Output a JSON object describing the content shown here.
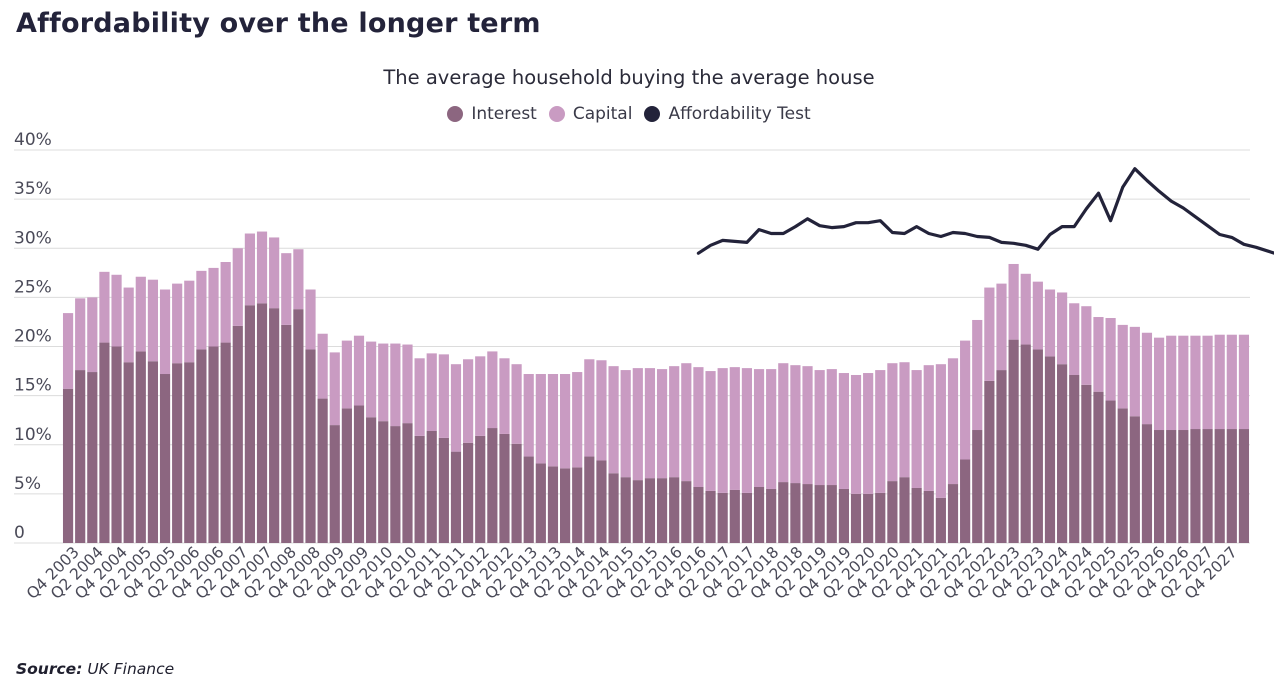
{
  "title": "Affordability over the longer term",
  "chart_data": {
    "type": "bar",
    "subtitle": "The average household buying the average house",
    "xlabel": "",
    "ylabel": "",
    "ylim": [
      0,
      40
    ],
    "y_ticks": [
      "0",
      "5%",
      "10%",
      "15%",
      "20%",
      "25%",
      "30%",
      "35%",
      "40%"
    ],
    "grid": true,
    "stacked": true,
    "legend_position": "top-center",
    "x_tick_labels": [
      "Q4 2003",
      "Q2 2004",
      "Q4 2004",
      "Q2 2005",
      "Q4 2005",
      "Q2 2006",
      "Q4 2006",
      "Q2 2007",
      "Q4 2007",
      "Q2 2008",
      "Q4 2008",
      "Q2 2009",
      "Q4 2009",
      "Q2 2010",
      "Q4 2010",
      "Q2 2011",
      "Q4 2011",
      "Q2 2012",
      "Q4 2012",
      "Q2 2013",
      "Q4 2013",
      "Q2 2014",
      "Q4 2014",
      "Q2 2015",
      "Q4 2015",
      "Q2 2016",
      "Q4 2016",
      "Q2 2017",
      "Q4 2017",
      "Q2 2018",
      "Q4 2018",
      "Q2 2019",
      "Q4 2019",
      "Q2 2020",
      "Q4 2020",
      "Q2 2021",
      "Q4 2021",
      "Q2 2022",
      "Q4 2022",
      "Q2 2023",
      "Q4 2023",
      "Q2 2024",
      "Q4 2024",
      "Q2 2025",
      "Q4 2025",
      "Q2 2026",
      "Q4 2026",
      "Q2 2027",
      "Q4 2027"
    ],
    "series": [
      {
        "name": "Interest",
        "color": "#8c6680",
        "values": [
          15.7,
          17.6,
          17.4,
          20.4,
          20.0,
          18.4,
          19.5,
          18.5,
          17.2,
          18.3,
          18.4,
          19.7,
          20.0,
          20.4,
          22.1,
          24.2,
          24.4,
          23.9,
          22.2,
          23.8,
          19.7,
          14.7,
          12.0,
          13.7,
          14.0,
          12.8,
          12.4,
          11.9,
          12.2,
          10.9,
          11.4,
          10.7,
          9.3,
          10.2,
          10.9,
          11.7,
          11.1,
          10.1,
          8.8,
          8.1,
          7.8,
          7.6,
          7.7,
          8.8,
          8.4,
          7.1,
          6.7,
          6.4,
          6.6,
          6.6,
          6.7,
          6.3,
          5.7,
          5.3,
          5.1,
          5.4,
          5.1,
          5.7,
          5.5,
          6.2,
          6.1,
          6.0,
          5.9,
          5.9,
          5.5,
          5.0,
          5.0,
          5.1,
          6.3,
          6.7,
          5.6,
          5.3,
          4.6,
          6.0,
          8.5,
          11.5,
          16.5,
          17.6,
          20.7,
          20.2,
          19.7,
          19.0,
          18.2,
          17.1,
          16.1,
          15.4,
          14.5,
          13.7,
          12.9,
          12.1,
          11.5,
          11.5,
          11.5,
          11.6,
          11.6,
          11.6,
          11.6,
          11.6
        ]
      },
      {
        "name": "Capital",
        "color": "#c99bc2",
        "values": [
          7.7,
          7.3,
          7.6,
          7.2,
          7.3,
          7.6,
          7.6,
          8.3,
          8.6,
          8.1,
          8.3,
          8.0,
          8.0,
          8.2,
          7.9,
          7.3,
          7.3,
          7.2,
          7.3,
          6.1,
          6.1,
          6.6,
          7.4,
          6.9,
          7.1,
          7.7,
          7.9,
          8.4,
          8.0,
          7.9,
          7.9,
          8.5,
          8.9,
          8.5,
          8.1,
          7.8,
          7.7,
          8.1,
          8.4,
          9.1,
          9.4,
          9.6,
          9.7,
          9.9,
          10.2,
          10.9,
          10.9,
          11.4,
          11.2,
          11.1,
          11.3,
          12.0,
          12.2,
          12.2,
          12.7,
          12.5,
          12.7,
          12.0,
          12.2,
          12.1,
          12.0,
          12.0,
          11.7,
          11.8,
          11.8,
          12.1,
          12.3,
          12.5,
          12.0,
          11.7,
          12.0,
          12.8,
          13.6,
          12.8,
          12.1,
          11.2,
          9.5,
          8.8,
          7.7,
          7.2,
          6.9,
          6.8,
          7.3,
          7.3,
          8.0,
          7.6,
          8.4,
          8.5,
          9.1,
          9.3,
          9.4,
          9.6,
          9.6,
          9.5,
          9.5,
          9.6,
          9.6,
          9.6
        ]
      },
      {
        "name": "Affordability Test",
        "color": "#23233a",
        "type": "line",
        "start_index": 52,
        "values": [
          29.5,
          30.3,
          30.8,
          30.7,
          30.6,
          31.9,
          31.5,
          31.5,
          32.2,
          33.0,
          32.3,
          32.1,
          32.2,
          32.6,
          32.6,
          32.8,
          31.6,
          31.5,
          32.2,
          31.5,
          31.2,
          31.6,
          31.5,
          31.2,
          31.1,
          30.6,
          30.5,
          30.3,
          29.9,
          31.4,
          32.2,
          32.2,
          34.0,
          35.6,
          32.8,
          36.2,
          38.1,
          36.9,
          35.8,
          34.8,
          34.1,
          33.2,
          32.3,
          31.4,
          31.1,
          30.4,
          30.1,
          29.7,
          29.3,
          29.3,
          29.5,
          29.6,
          29.8,
          29.6,
          29.7,
          29.7
        ]
      }
    ]
  },
  "source": {
    "label": "Source:",
    "text": "UK Finance"
  }
}
